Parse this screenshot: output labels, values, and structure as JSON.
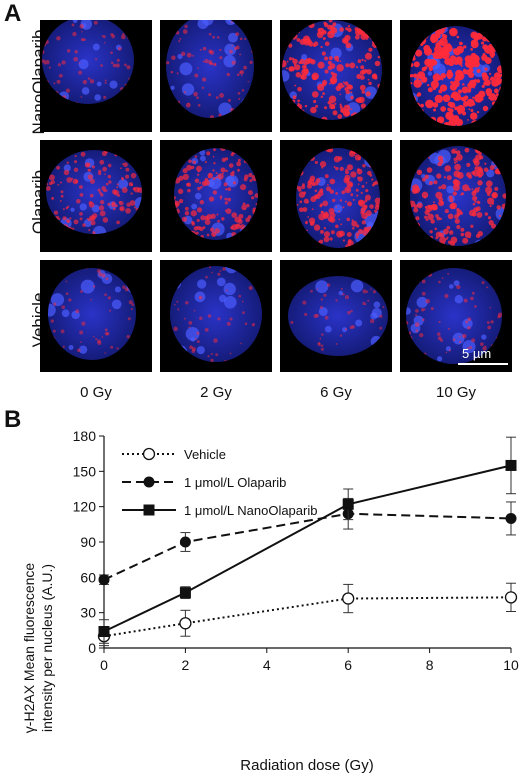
{
  "panel_a": {
    "letter": "A",
    "row_labels": [
      "NanoOlaparib",
      "Olaparib",
      "Vehicle"
    ],
    "column_labels": [
      "0 Gy",
      "2 Gy",
      "6 Gy",
      "10 Gy"
    ],
    "scale_bar": "5 µm",
    "colors": {
      "nucleus": "#2233dd",
      "foci": "#ff2a3a",
      "background": "#000000"
    }
  },
  "panel_b": {
    "letter": "B"
  },
  "chart_data": {
    "type": "line",
    "xlabel": "Radiation dose (Gy)",
    "ylabel_line1": "γ-H2AX Mean fluorescence",
    "ylabel_line2": "intensity per nucleus (A.U.)",
    "xlim": [
      0,
      10
    ],
    "ylim": [
      0,
      180
    ],
    "x_ticks": [
      0,
      2,
      4,
      6,
      8,
      10
    ],
    "y_ticks": [
      0,
      30,
      60,
      90,
      120,
      150,
      180
    ],
    "x": [
      0,
      2,
      6,
      10
    ],
    "legend_position": "top-left",
    "series": [
      {
        "name": "Vehicle",
        "values": [
          10,
          21,
          42,
          43
        ],
        "errors": [
          8,
          11,
          12,
          12
        ],
        "marker": "circle-open",
        "line": "dotted"
      },
      {
        "name": "1 μmol/L Olaparib",
        "values": [
          58,
          90,
          114,
          110
        ],
        "errors": [
          4,
          8,
          13,
          14
        ],
        "marker": "circle-filled",
        "line": "dashed"
      },
      {
        "name": "1 μmol/L NanoOlaparib",
        "values": [
          14,
          47,
          122,
          155
        ],
        "errors": [
          10,
          5,
          13,
          24
        ],
        "marker": "square-filled",
        "line": "solid"
      }
    ]
  }
}
